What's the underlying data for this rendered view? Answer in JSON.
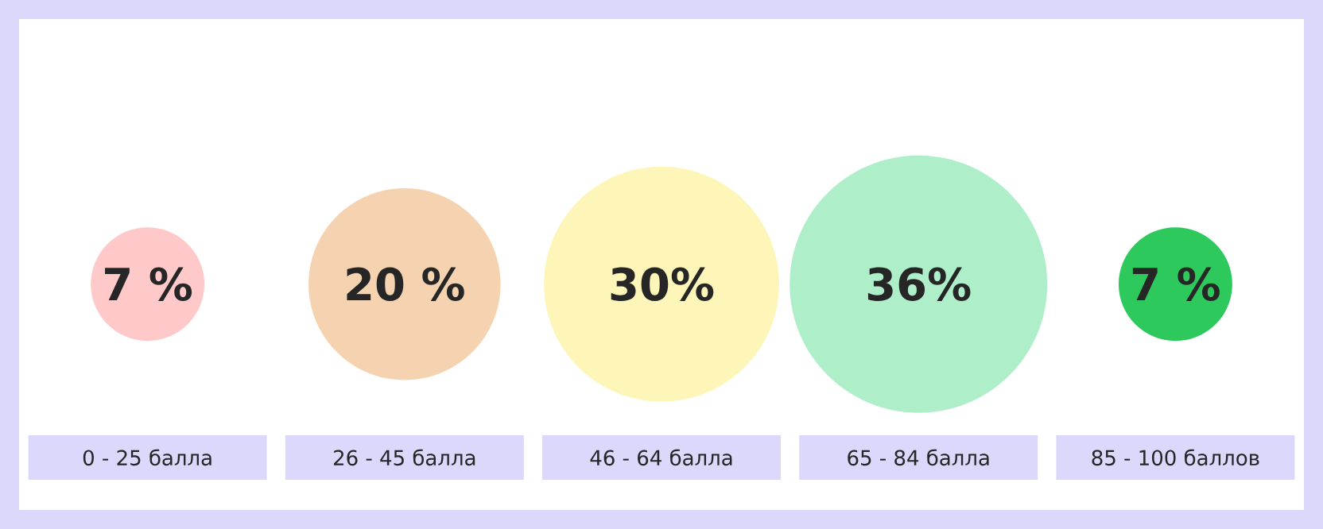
{
  "chart_data": {
    "type": "other",
    "categories": [
      "0 - 25 балла",
      "26 - 45 балла",
      "46 - 64 балла",
      "65 - 84 балла",
      "85 - 100 баллов"
    ],
    "values": [
      7,
      20,
      30,
      36,
      7
    ],
    "value_labels": [
      "7 %",
      "20 %",
      "30%",
      "36%",
      "7 %"
    ],
    "colors": [
      "#ffc9c9",
      "#f6d3b0",
      "#fef5b9",
      "#aeefca",
      "#2ec95c"
    ]
  }
}
